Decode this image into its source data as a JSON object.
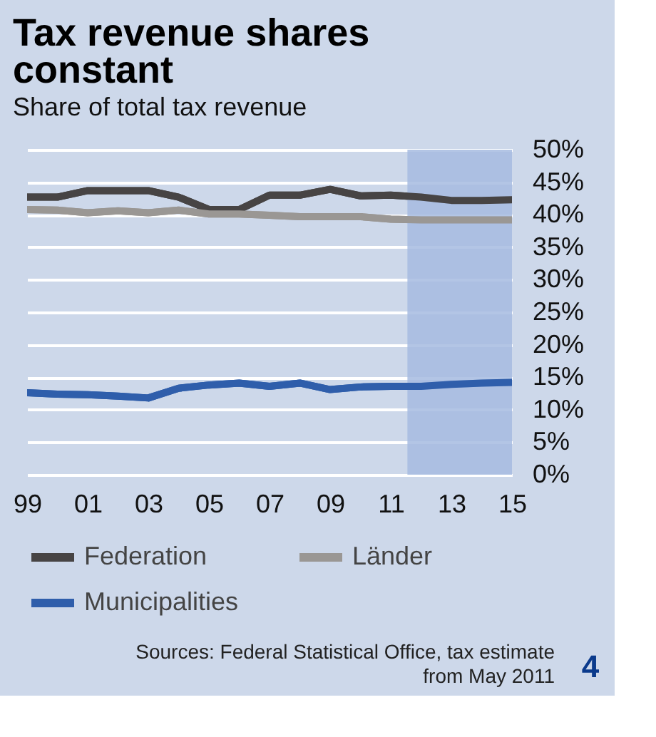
{
  "chart_data": {
    "type": "line",
    "title": "Tax revenue shares constant",
    "subtitle": "Share of total tax revenue",
    "x": [
      1999,
      2000,
      2001,
      2002,
      2003,
      2004,
      2005,
      2006,
      2007,
      2008,
      2009,
      2010,
      2011,
      2012,
      2013,
      2014,
      2015
    ],
    "series": [
      {
        "name": "Federation",
        "color": "#474444",
        "values": [
          42.7,
          42.7,
          43.7,
          43.7,
          43.7,
          42.7,
          40.8,
          40.8,
          43.0,
          43.0,
          43.9,
          42.9,
          43.0,
          42.7,
          42.2,
          42.2,
          42.3
        ]
      },
      {
        "name": "Länder",
        "color": "#9a9794",
        "values": [
          40.8,
          40.7,
          40.3,
          40.6,
          40.3,
          40.7,
          40.1,
          40.1,
          39.9,
          39.7,
          39.7,
          39.7,
          39.3,
          39.2,
          39.2,
          39.2,
          39.2
        ]
      },
      {
        "name": "Municipalities",
        "color": "#2f5eab",
        "values": [
          12.6,
          12.4,
          12.3,
          12.1,
          11.8,
          13.3,
          13.8,
          14.1,
          13.6,
          14.1,
          13.1,
          13.5,
          13.6,
          13.6,
          13.9,
          14.1,
          14.2
        ]
      }
    ],
    "xlim": [
      1999,
      2015
    ],
    "xticks": [
      {
        "value": 1999,
        "label": "99"
      },
      {
        "value": 2001,
        "label": "01"
      },
      {
        "value": 2003,
        "label": "03"
      },
      {
        "value": 2005,
        "label": "05"
      },
      {
        "value": 2007,
        "label": "07"
      },
      {
        "value": 2009,
        "label": "09"
      },
      {
        "value": 2011,
        "label": "11"
      },
      {
        "value": 2013,
        "label": "13"
      },
      {
        "value": 2015,
        "label": "15"
      }
    ],
    "ylim": [
      0,
      50
    ],
    "yticks": [
      {
        "value": 0,
        "label": "0%"
      },
      {
        "value": 5,
        "label": "5%"
      },
      {
        "value": 10,
        "label": "10%"
      },
      {
        "value": 15,
        "label": "15%"
      },
      {
        "value": 20,
        "label": "20%"
      },
      {
        "value": 25,
        "label": "25%"
      },
      {
        "value": 30,
        "label": "30%"
      },
      {
        "value": 35,
        "label": "35%"
      },
      {
        "value": 40,
        "label": "40%"
      },
      {
        "value": 45,
        "label": "45%"
      },
      {
        "value": 50,
        "label": "50%"
      }
    ],
    "bands": [
      {
        "axis": "x",
        "from": 2011.55,
        "to": 2015,
        "color": "#a6bbe0"
      }
    ],
    "grid": "y",
    "legend": "bottom",
    "marker": "none",
    "line_style": "solid",
    "annotations": [
      "Sources: Federal Statistical Office, tax estimate from May 2011",
      "4"
    ]
  }
}
